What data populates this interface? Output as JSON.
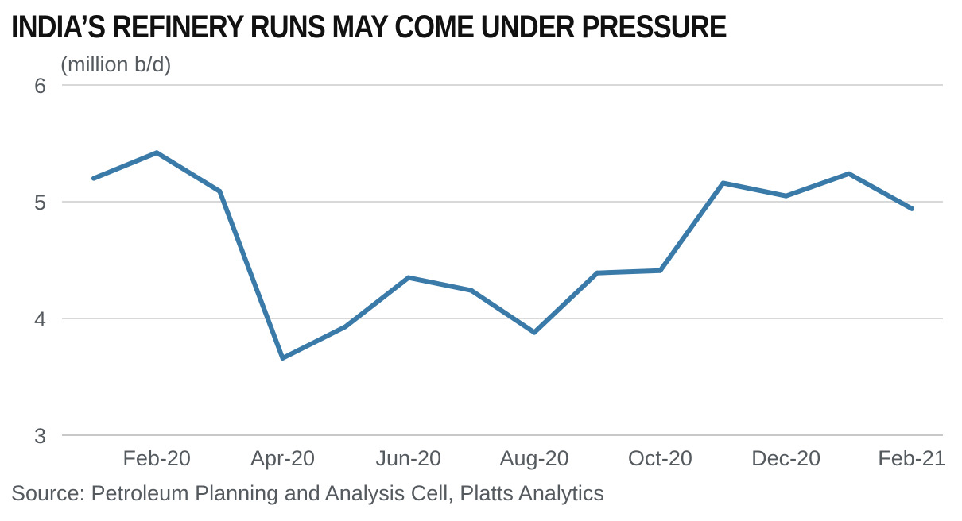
{
  "chart_data": {
    "type": "line",
    "title": "INDIA’S REFINERY RUNS MAY COME UNDER PRESSURE",
    "ylabel": "(million b/d)",
    "source": "Source: Petroleum Planning and Analysis Cell, Platts Analytics",
    "ylim": [
      3,
      6
    ],
    "y_ticks": [
      "3",
      "4",
      "5",
      "6"
    ],
    "x_tick_labels": [
      "Feb-20",
      "Apr-20",
      "Jun-20",
      "Aug-20",
      "Oct-20",
      "Dec-20",
      "Feb-21"
    ],
    "x": [
      "Jan-20",
      "Feb-20",
      "Mar-20",
      "Apr-20",
      "May-20",
      "Jun-20",
      "Jul-20",
      "Aug-20",
      "Sep-20",
      "Oct-20",
      "Nov-20",
      "Dec-20",
      "Jan-21",
      "Feb-21"
    ],
    "series": [
      {
        "values": [
          5.2,
          5.42,
          5.09,
          3.66,
          3.93,
          4.35,
          4.24,
          3.88,
          4.39,
          4.41,
          5.16,
          5.05,
          5.24,
          4.94
        ]
      }
    ],
    "grid": true,
    "line_color": "#3a7aa8",
    "grid_color": "#d9d9d9"
  }
}
